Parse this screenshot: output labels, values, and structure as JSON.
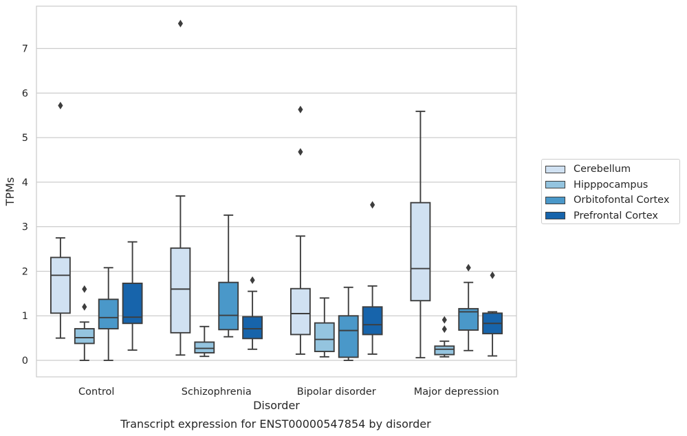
{
  "chart_data": {
    "type": "box",
    "title": "Transcript expression for ENST00000547854 by disorder",
    "xlabel": "Disorder",
    "ylabel": "TPMs",
    "ylim": [
      -0.37,
      7.95
    ],
    "yticks": [
      0,
      1,
      2,
      3,
      4,
      5,
      6,
      7
    ],
    "grid": "horizontal",
    "legend_placement": "right",
    "categories": [
      "Control",
      "Schizophrenia",
      "Bipolar disorder",
      "Major depression"
    ],
    "series": [
      {
        "name": "Cerebellum",
        "color": "#d0e1f2",
        "boxes": [
          {
            "whislo": 0.5,
            "q1": 1.06,
            "med": 1.91,
            "q3": 2.31,
            "whishi": 2.75,
            "fliers": [
              5.72
            ]
          },
          {
            "whislo": 0.12,
            "q1": 0.62,
            "med": 1.6,
            "q3": 2.52,
            "whishi": 3.69,
            "fliers": [
              7.56
            ]
          },
          {
            "whislo": 0.14,
            "q1": 0.58,
            "med": 1.05,
            "q3": 1.61,
            "whishi": 2.79,
            "fliers": [
              5.63,
              4.68
            ]
          },
          {
            "whislo": 0.06,
            "q1": 1.34,
            "med": 2.06,
            "q3": 3.54,
            "whishi": 5.59,
            "fliers": []
          }
        ]
      },
      {
        "name": "Hipppocampus",
        "color": "#94c4df",
        "boxes": [
          {
            "whislo": 0.0,
            "q1": 0.38,
            "med": 0.51,
            "q3": 0.71,
            "whishi": 0.86,
            "fliers": [
              1.6,
              1.2
            ]
          },
          {
            "whislo": 0.09,
            "q1": 0.17,
            "med": 0.27,
            "q3": 0.41,
            "whishi": 0.76,
            "fliers": []
          },
          {
            "whislo": 0.08,
            "q1": 0.2,
            "med": 0.47,
            "q3": 0.84,
            "whishi": 1.4,
            "fliers": []
          },
          {
            "whislo": 0.08,
            "q1": 0.13,
            "med": 0.25,
            "q3": 0.32,
            "whishi": 0.43,
            "fliers": [
              0.91,
              0.7
            ]
          }
        ]
      },
      {
        "name": "Orbitofontal Cortex",
        "color": "#4a98c9",
        "boxes": [
          {
            "whislo": 0.0,
            "q1": 0.71,
            "med": 0.96,
            "q3": 1.37,
            "whishi": 2.08,
            "fliers": []
          },
          {
            "whislo": 0.53,
            "q1": 0.69,
            "med": 1.01,
            "q3": 1.75,
            "whishi": 3.26,
            "fliers": []
          },
          {
            "whislo": 0.0,
            "q1": 0.07,
            "med": 0.67,
            "q3": 1.0,
            "whishi": 1.64,
            "fliers": []
          },
          {
            "whislo": 0.22,
            "q1": 0.68,
            "med": 1.09,
            "q3": 1.16,
            "whishi": 1.75,
            "fliers": [
              2.08
            ]
          }
        ]
      },
      {
        "name": "Prefrontal Cortex",
        "color": "#1764ab",
        "boxes": [
          {
            "whislo": 0.23,
            "q1": 0.83,
            "med": 0.97,
            "q3": 1.73,
            "whishi": 2.66,
            "fliers": []
          },
          {
            "whislo": 0.25,
            "q1": 0.49,
            "med": 0.71,
            "q3": 0.98,
            "whishi": 1.55,
            "fliers": [
              1.8
            ]
          },
          {
            "whislo": 0.14,
            "q1": 0.58,
            "med": 0.8,
            "q3": 1.2,
            "whishi": 1.67,
            "fliers": [
              3.49
            ]
          },
          {
            "whislo": 0.1,
            "q1": 0.6,
            "med": 0.83,
            "q3": 1.06,
            "whishi": 1.09,
            "fliers": [
              1.91
            ]
          }
        ]
      }
    ]
  }
}
